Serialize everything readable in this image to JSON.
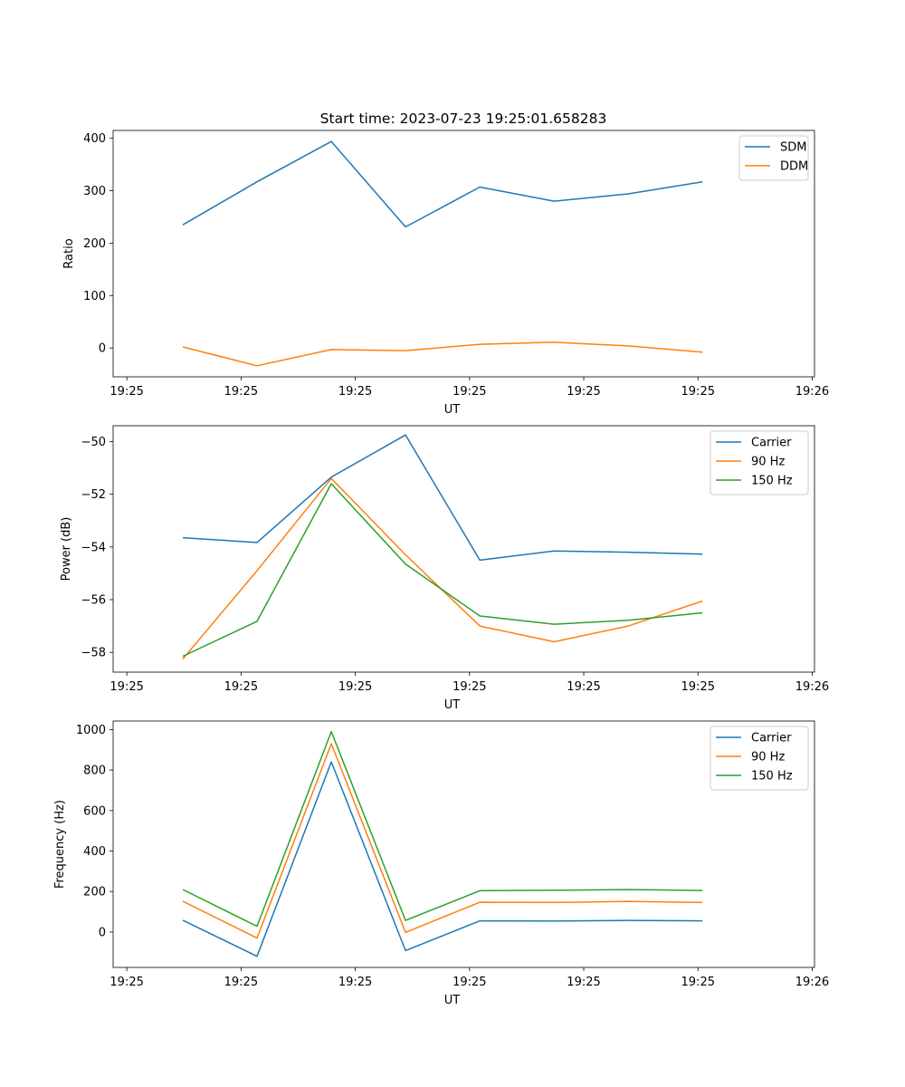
{
  "figure_title": "Start time: 2023-07-23 19:25:01.658283",
  "chart_data": [
    {
      "type": "line",
      "title": "Start time: 2023-07-23 19:25:01.658283",
      "xlabel": "UT",
      "ylabel": "Ratio",
      "x_unit": "seconds after 19:25:00",
      "xlim": [
        0.8,
        62.2
      ],
      "ylim": [
        -55,
        415
      ],
      "x_ticks": [
        2,
        12,
        22,
        32,
        42,
        52,
        62
      ],
      "x_tick_labels": [
        "19:25",
        "19:25",
        "19:25",
        "19:25",
        "19:25",
        "19:25",
        "19:26"
      ],
      "y_ticks": [
        0,
        100,
        200,
        300,
        400
      ],
      "y_tick_labels": [
        "0",
        "100",
        "200",
        "300",
        "400"
      ],
      "legend_position": "top-right",
      "x": [
        6.9,
        13.4,
        19.9,
        26.4,
        32.9,
        39.4,
        45.9,
        52.4
      ],
      "series": [
        {
          "name": "SDM",
          "color": "#1f77b4",
          "values": [
            235,
            317,
            394,
            231,
            307,
            280,
            294,
            317
          ]
        },
        {
          "name": "DDM",
          "color": "#ff7f0e",
          "values": [
            2,
            -34,
            -3,
            -5,
            7,
            11,
            4,
            -8
          ]
        }
      ]
    },
    {
      "type": "line",
      "title": "",
      "xlabel": "UT",
      "ylabel": "Power (dB)",
      "x_unit": "seconds after 19:25:00",
      "xlim": [
        0.8,
        62.2
      ],
      "ylim": [
        -58.75,
        -49.4
      ],
      "x_ticks": [
        2,
        12,
        22,
        32,
        42,
        52,
        62
      ],
      "x_tick_labels": [
        "19:25",
        "19:25",
        "19:25",
        "19:25",
        "19:25",
        "19:25",
        "19:26"
      ],
      "y_ticks": [
        -58,
        -56,
        -54,
        -52,
        -50
      ],
      "y_tick_labels": [
        "−58",
        "−56",
        "−54",
        "−52",
        "−50"
      ],
      "legend_position": "top-right",
      "x": [
        6.9,
        13.4,
        19.9,
        26.4,
        32.9,
        39.4,
        45.9,
        52.4
      ],
      "series": [
        {
          "name": "Carrier",
          "color": "#1f77b4",
          "values": [
            -53.65,
            -53.83,
            -51.35,
            -49.75,
            -54.5,
            -54.15,
            -54.2,
            -54.27
          ]
        },
        {
          "name": "90 Hz",
          "color": "#ff7f0e",
          "values": [
            -58.25,
            -54.9,
            -51.4,
            -54.3,
            -57.0,
            -57.6,
            -57.0,
            -56.05
          ]
        },
        {
          "name": "150 Hz",
          "color": "#2ca02c",
          "values": [
            -58.15,
            -56.82,
            -51.6,
            -54.65,
            -56.62,
            -56.93,
            -56.78,
            -56.5
          ]
        }
      ]
    },
    {
      "type": "line",
      "title": "",
      "xlabel": "UT",
      "ylabel": "Frequency (Hz)",
      "x_unit": "seconds after 19:25:00",
      "xlim": [
        0.8,
        62.2
      ],
      "ylim": [
        -175,
        1042
      ],
      "x_ticks": [
        2,
        12,
        22,
        32,
        42,
        52,
        62
      ],
      "x_tick_labels": [
        "19:25",
        "19:25",
        "19:25",
        "19:25",
        "19:25",
        "19:25",
        "19:26"
      ],
      "y_ticks": [
        0,
        200,
        400,
        600,
        800,
        1000
      ],
      "y_tick_labels": [
        "0",
        "200",
        "400",
        "600",
        "800",
        "1000"
      ],
      "legend_position": "top-right",
      "x": [
        6.9,
        13.4,
        19.9,
        26.4,
        32.9,
        39.4,
        45.9,
        52.4
      ],
      "series": [
        {
          "name": "Carrier",
          "color": "#1f77b4",
          "values": [
            58,
            -120,
            840,
            -92,
            55,
            54,
            57,
            55
          ]
        },
        {
          "name": "90 Hz",
          "color": "#ff7f0e",
          "values": [
            152,
            -30,
            930,
            -2,
            147,
            146,
            151,
            146
          ]
        },
        {
          "name": "150 Hz",
          "color": "#2ca02c",
          "values": [
            210,
            28,
            990,
            57,
            204,
            206,
            210,
            205
          ]
        }
      ]
    }
  ]
}
